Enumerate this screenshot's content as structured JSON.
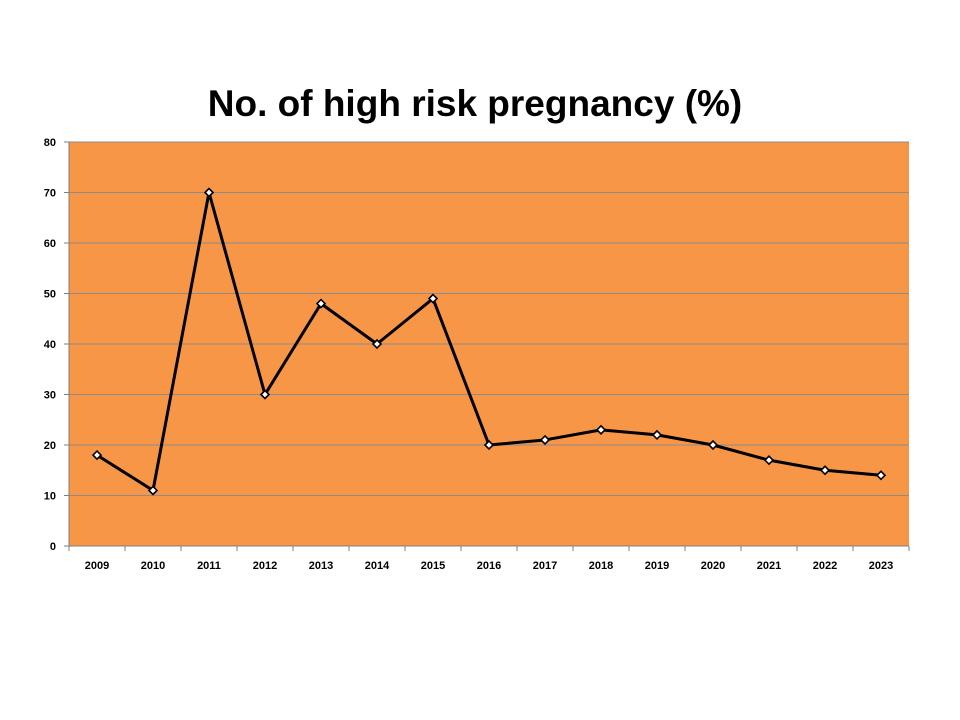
{
  "chart_data": {
    "type": "line",
    "title": "No. of high risk pregnancy (%)",
    "xlabel": "",
    "ylabel": "",
    "categories": [
      "2009",
      "2010",
      "2011",
      "2012",
      "2013",
      "2014",
      "2015",
      "2016",
      "2017",
      "2018",
      "2019",
      "2020",
      "2021",
      "2022",
      "2023"
    ],
    "series": [
      {
        "values": [
          18,
          11,
          70,
          30,
          48,
          40,
          49,
          20,
          21,
          23,
          22,
          20,
          17,
          15,
          14
        ]
      }
    ],
    "ylim": [
      0,
      80
    ],
    "yticks": [
      0,
      10,
      20,
      30,
      40,
      50,
      60,
      70,
      80
    ],
    "grid": true,
    "legend": "none",
    "colors": {
      "plot_background": "#F79646",
      "line": "#000000",
      "marker_fill": "#ffffff",
      "gridline": "#8c8c8c"
    }
  }
}
